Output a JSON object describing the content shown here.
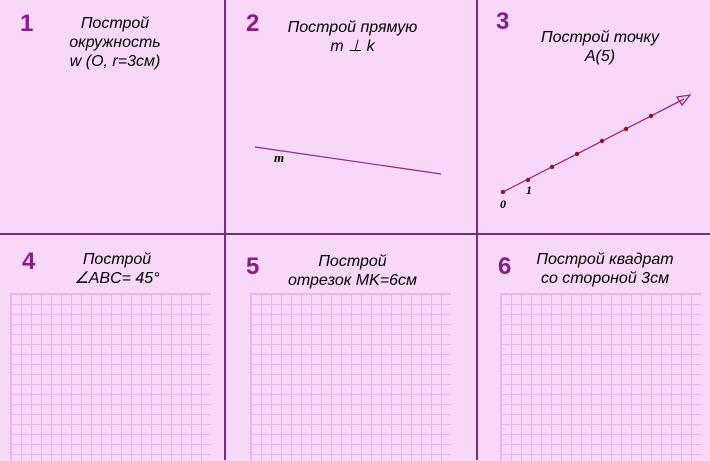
{
  "cells": [
    {
      "number": "1",
      "lines": [
        "Построй",
        "окружность",
        "w (O, r=3см)"
      ]
    },
    {
      "number": "2",
      "lines": [
        "Построй прямую",
        "m ⊥ k"
      ]
    },
    {
      "number": "3",
      "lines": [
        "Построй точку",
        "A(5)"
      ]
    },
    {
      "number": "4",
      "lines": [
        "Построй",
        "∠ABC= 45°"
      ]
    },
    {
      "number": "5",
      "lines": [
        "Построй",
        "отрезок MK=6см"
      ]
    },
    {
      "number": "6",
      "lines": [
        "Построй квадрат",
        "со стороной 3см"
      ]
    }
  ],
  "line_label": "m",
  "number_ray": {
    "origin_label": "0",
    "unit_label": "1"
  },
  "colors": {
    "background": "#f9d7f9",
    "divider": "#7a2a7a",
    "number": "#8b1a8b",
    "ray": "#a0208f",
    "dot": "#8b1a1a"
  }
}
